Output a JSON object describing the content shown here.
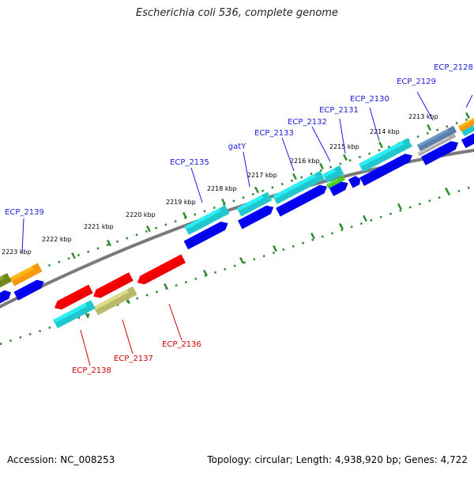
{
  "title": "Escherichia coli 536, complete genome",
  "footer": {
    "accession": "Accession: NC_008253",
    "summary": "Topology: circular; Length: 4,938,920 bp; Genes: 4,722"
  },
  "ruler": {
    "unit": "kbp",
    "ticks": [
      "2213 kbp",
      "2214 kbp",
      "2215 kbp",
      "2216 kbp",
      "2217 kbp",
      "2218 kbp",
      "2219 kbp",
      "2220 kbp",
      "2221 kbp",
      "2222 kbp",
      "2223 kbp"
    ]
  },
  "colors": {
    "forward_label": "#1a1adc",
    "reverse_label": "#cc0000",
    "cds_blue": "#0000ee",
    "teal": "#21c7cf",
    "red": "#ee0000",
    "olive": "#b8b86e",
    "orange": "#f59a10",
    "green": "#4ec72c",
    "steel": "#5b7fa8",
    "grey": "#aaaaaa",
    "backbone": "#7a7a7a",
    "dots": "#2c8a2c"
  },
  "forward_genes": [
    "ECP_2128",
    "ECP_2129",
    "ECP_2130",
    "ECP_2131",
    "ECP_2132",
    "ECP_2133",
    "gatY",
    "ECP_2135",
    "ECP_2139"
  ],
  "reverse_genes": [
    "ECP_2136",
    "ECP_2137",
    "ECP_2138"
  ]
}
